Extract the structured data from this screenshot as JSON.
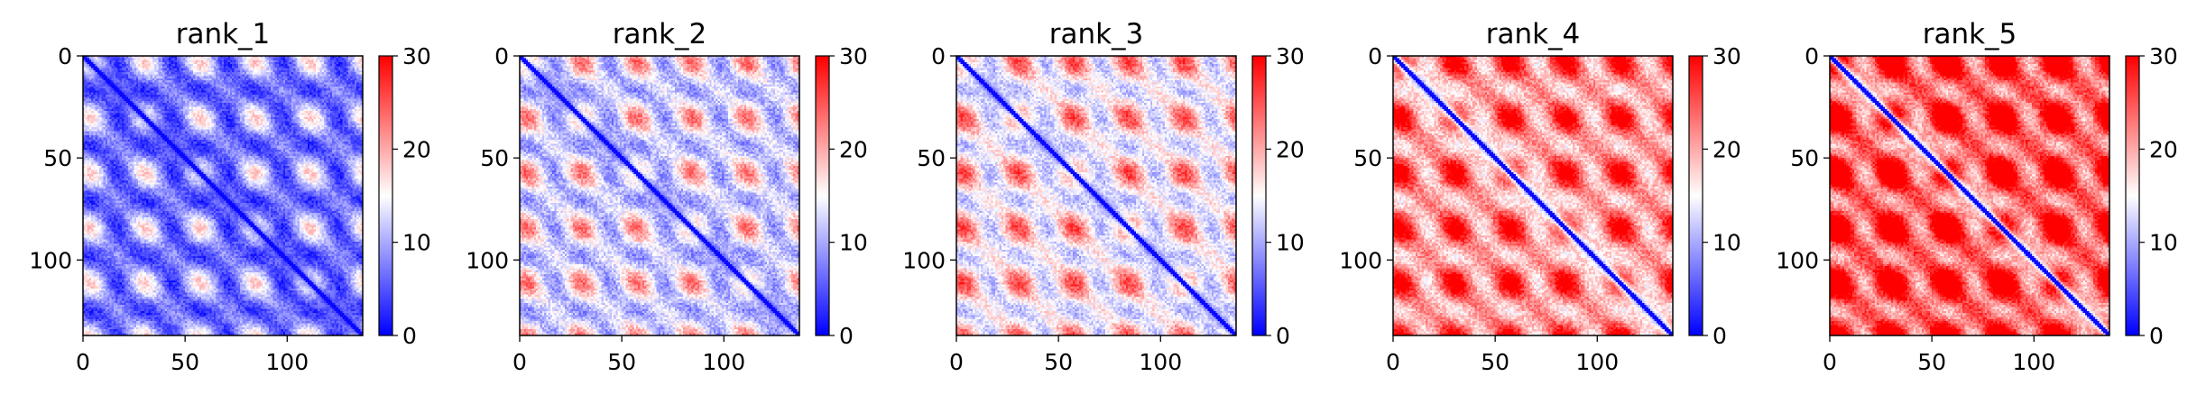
{
  "figure": {
    "colorbar": {
      "min": 0,
      "max": 30,
      "ticks": [
        0,
        10,
        20,
        30
      ],
      "colormap": "bwr",
      "colors": {
        "low": "#0000ff",
        "mid": "#ffffff",
        "high": "#ff0000"
      }
    }
  },
  "chart_data": [
    {
      "type": "heatmap",
      "title": "rank_1",
      "matrix_size": 137,
      "xlim": [
        0,
        137
      ],
      "ylim": [
        137,
        0
      ],
      "x_ticks": [
        0,
        50,
        100
      ],
      "y_ticks": [
        0,
        50,
        100
      ],
      "colorbar_range": [
        0,
        30
      ],
      "colorbar_ticks": [
        0,
        10,
        20,
        30
      ],
      "mean_value": 8,
      "contrast": 9,
      "diagonal": "symmetric distance map, near-zero (blue) along the main diagonal",
      "banding_period": 27,
      "banding_phase": 3,
      "noise": 2.5
    },
    {
      "type": "heatmap",
      "title": "rank_2",
      "matrix_size": 137,
      "xlim": [
        0,
        137
      ],
      "ylim": [
        137,
        0
      ],
      "x_ticks": [
        0,
        50,
        100
      ],
      "y_ticks": [
        0,
        50,
        100
      ],
      "colorbar_range": [
        0,
        30
      ],
      "colorbar_ticks": [
        0,
        10,
        20,
        30
      ],
      "mean_value": 13.5,
      "contrast": 9,
      "diagonal": "symmetric distance map, near-zero (blue) along the main diagonal",
      "banding_period": 27,
      "banding_phase": 3,
      "noise": 3
    },
    {
      "type": "heatmap",
      "title": "rank_3",
      "matrix_size": 137,
      "xlim": [
        0,
        137
      ],
      "ylim": [
        137,
        0
      ],
      "x_ticks": [
        0,
        50,
        100
      ],
      "y_ticks": [
        0,
        50,
        100
      ],
      "colorbar_range": [
        0,
        30
      ],
      "colorbar_ticks": [
        0,
        10,
        20,
        30
      ],
      "mean_value": 16,
      "contrast": 9,
      "diagonal": "symmetric distance map, near-zero (blue) along the main diagonal",
      "banding_period": 27,
      "banding_phase": 3,
      "noise": 3
    },
    {
      "type": "heatmap",
      "title": "rank_4",
      "matrix_size": 137,
      "xlim": [
        0,
        137
      ],
      "ylim": [
        137,
        0
      ],
      "x_ticks": [
        0,
        50,
        100
      ],
      "y_ticks": [
        0,
        50,
        100
      ],
      "colorbar_range": [
        0,
        30
      ],
      "colorbar_ticks": [
        0,
        10,
        20,
        30
      ],
      "mean_value": 22,
      "contrast": 10,
      "diagonal": "symmetric distance map, near-zero (blue) along the main diagonal",
      "banding_period": 27,
      "banding_phase": 3,
      "noise": 3
    },
    {
      "type": "heatmap",
      "title": "rank_5",
      "matrix_size": 137,
      "xlim": [
        0,
        137
      ],
      "ylim": [
        137,
        0
      ],
      "x_ticks": [
        0,
        50,
        100
      ],
      "y_ticks": [
        0,
        50,
        100
      ],
      "colorbar_range": [
        0,
        30
      ],
      "colorbar_ticks": [
        0,
        10,
        20,
        30
      ],
      "mean_value": 26,
      "contrast": 13,
      "diagonal": "symmetric distance map, near-zero (blue) along the main diagonal",
      "banding_period": 27,
      "banding_phase": 3,
      "noise": 3
    }
  ]
}
